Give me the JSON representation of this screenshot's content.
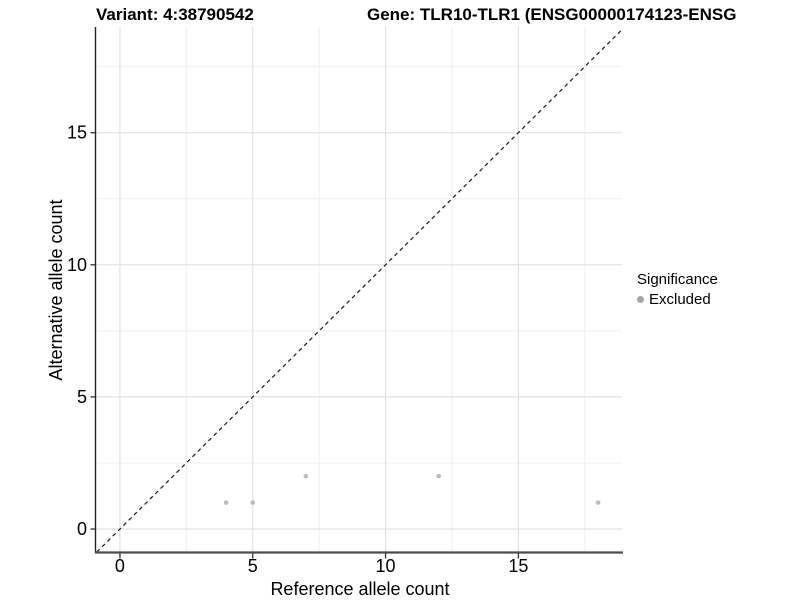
{
  "header": {
    "variant_title": "Variant: 4:38790542",
    "gene_title": "Gene: TLR10-TLR1 (ENSG00000174123-ENSG"
  },
  "chart_data": {
    "type": "scatter",
    "title_left": "Variant: 4:38790542",
    "title_right_truncated": "Gene: TLR10-TLR1 (ENSG00000174123-ENSG",
    "xlabel": "Reference allele count",
    "ylabel": "Alternative allele count",
    "xlim": [
      -0.9,
      18.9
    ],
    "ylim": [
      -0.87,
      19.0
    ],
    "xticks": [
      0,
      5,
      10,
      15
    ],
    "yticks": [
      0,
      5,
      10,
      15
    ],
    "xminor": [
      2.5,
      7.5,
      12.5,
      17.5
    ],
    "yminor": [
      2.5,
      7.5,
      12.5,
      17.5
    ],
    "grid": "major+minor, light gray on white",
    "identity_line": {
      "slope": 1,
      "intercept": 0,
      "style": "dashed",
      "color": "#1a1a1a"
    },
    "series": [
      {
        "name": "Excluded",
        "marker": "circle",
        "color": "#bcbcbc",
        "points": [
          [
            4,
            1
          ],
          [
            5,
            1
          ],
          [
            7,
            2
          ],
          [
            12,
            2
          ],
          [
            18,
            1
          ]
        ]
      }
    ],
    "legend_position": "right"
  },
  "legend": {
    "title": "Significance",
    "items": [
      {
        "label": "Excluded",
        "swatch_color": "#a6a6a6"
      }
    ]
  },
  "style_colors": {
    "background": "#ffffff",
    "grid_major": "#e2e2e2",
    "grid_minor": "#efefef",
    "y_axis_line": "#222222",
    "x_axis_line": "#4d4d4d",
    "tick_mark": "#333333",
    "tick_label": "#000000",
    "point": "#bcbcbc"
  }
}
